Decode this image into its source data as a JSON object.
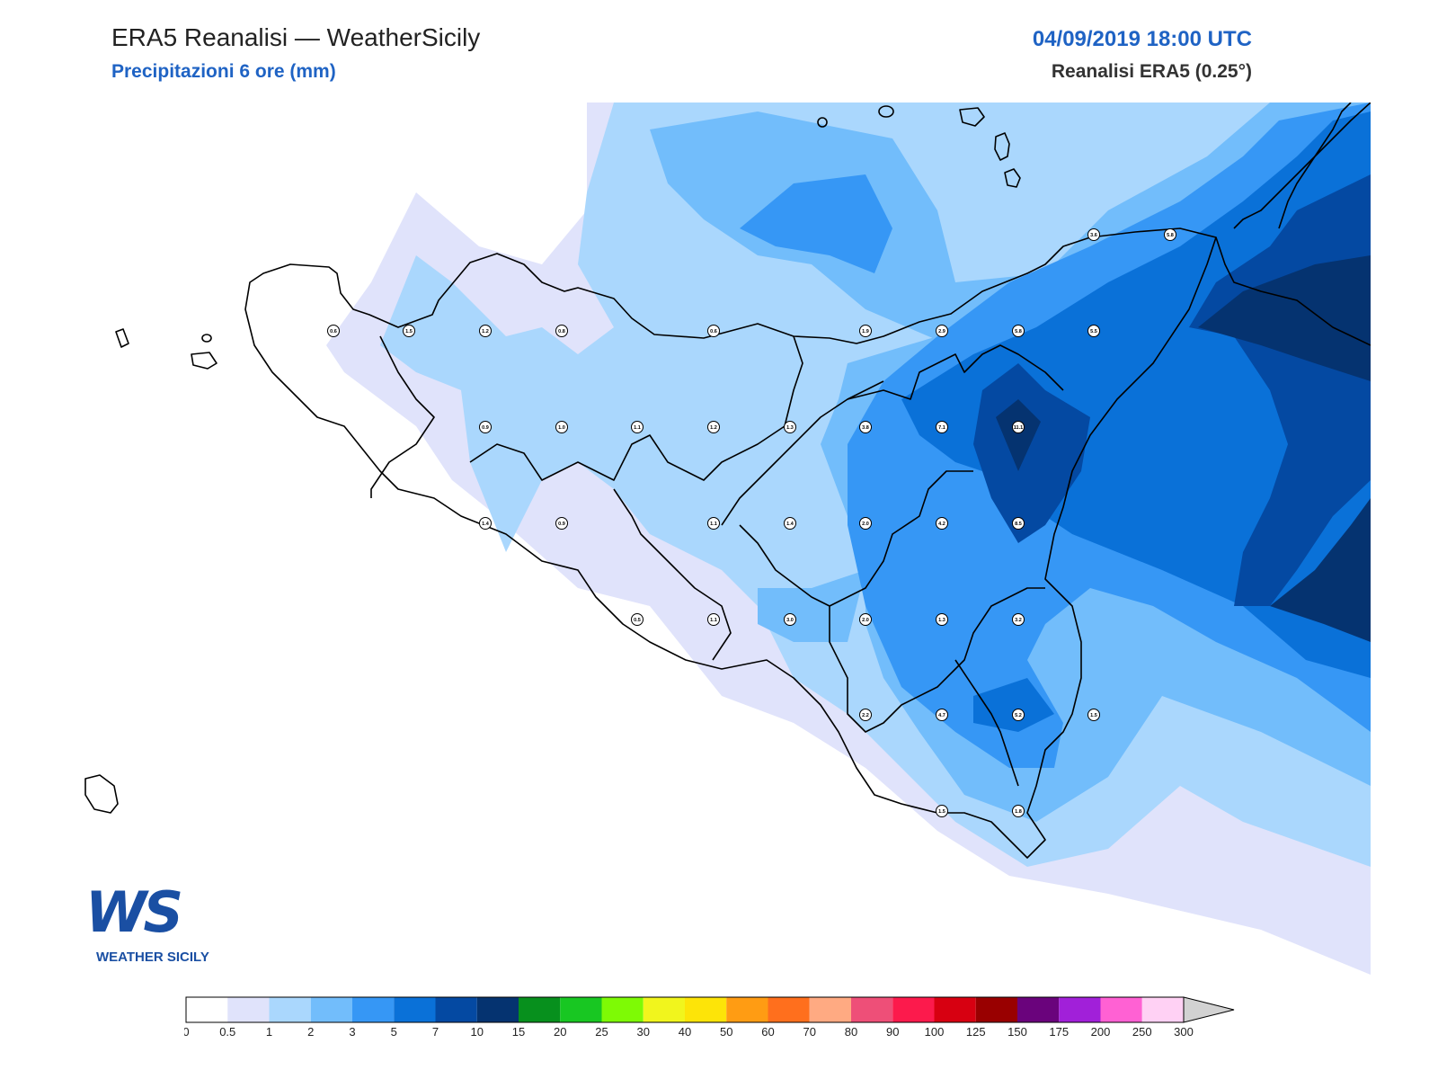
{
  "header": {
    "title": "ERA5 Reanalisi — WeatherSicily",
    "subtitle": "Precipitazioni 6 ore (mm)",
    "datetime": "04/09/2019 18:00 UTC",
    "source": "Reanalisi ERA5 (0.25°)"
  },
  "logo": {
    "monogram": "WS",
    "name": "WEATHER SICILY"
  },
  "colorbar": {
    "ticks": [
      "0",
      "0.5",
      "1",
      "2",
      "3",
      "5",
      "7",
      "10",
      "15",
      "20",
      "25",
      "30",
      "40",
      "50",
      "60",
      "70",
      "80",
      "90",
      "100",
      "125",
      "150",
      "175",
      "200",
      "250",
      "300"
    ],
    "colors": [
      "#ffffff",
      "#e0e3fb",
      "#aad7fd",
      "#72bdfb",
      "#3697f5",
      "#0a71d8",
      "#0449a2",
      "#053370",
      "#07901d",
      "#18c722",
      "#7efa05",
      "#f1f51d",
      "#fde408",
      "#ff9c13",
      "#ff6f1d",
      "#ffaa82",
      "#ee4f78",
      "#fc1a4c",
      "#d70011",
      "#990000",
      "#6a037c",
      "#a120d9",
      "#ff61d3",
      "#ffd1f4"
    ],
    "extend_color": "#d2d2d2"
  },
  "stations": [
    {
      "value": "0.6"
    },
    {
      "value": "1.5"
    },
    {
      "value": "1.2"
    },
    {
      "value": "0.8"
    },
    {
      "value": "0.6"
    },
    {
      "value": "1.9"
    },
    {
      "value": "2.9"
    },
    {
      "value": "5.8"
    },
    {
      "value": "5.5"
    },
    {
      "value": "3.6"
    },
    {
      "value": "5.8"
    },
    {
      "value": "0.9"
    },
    {
      "value": "1.0"
    },
    {
      "value": "1.1"
    },
    {
      "value": "1.2"
    },
    {
      "value": "1.3"
    },
    {
      "value": "3.8"
    },
    {
      "value": "7.1"
    },
    {
      "value": "11.1"
    },
    {
      "value": "1.4"
    },
    {
      "value": "0.9"
    },
    {
      "value": "1.1"
    },
    {
      "value": "1.4"
    },
    {
      "value": "2.0"
    },
    {
      "value": "4.2"
    },
    {
      "value": "8.5"
    },
    {
      "value": "0.5"
    },
    {
      "value": "1.1"
    },
    {
      "value": "3.0"
    },
    {
      "value": "2.0"
    },
    {
      "value": "1.3"
    },
    {
      "value": "3.2"
    },
    {
      "value": "2.2"
    },
    {
      "value": "4.7"
    },
    {
      "value": "5.2"
    },
    {
      "value": "1.5"
    },
    {
      "value": "1.5"
    },
    {
      "value": "1.8"
    }
  ]
}
